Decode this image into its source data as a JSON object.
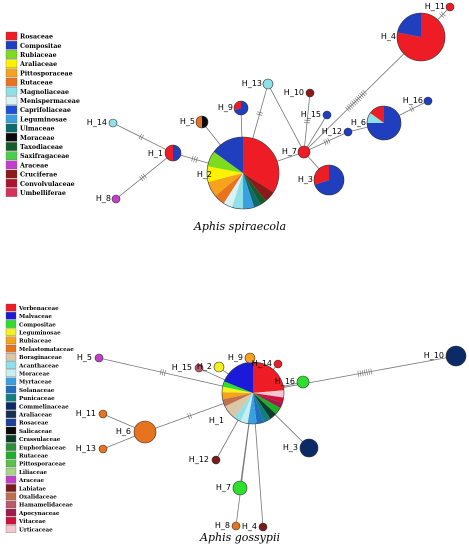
{
  "figures": [
    {
      "id": "spiraeacola",
      "caption": "Aphis spiraecola",
      "legend": [
        {
          "label": "Rosaceae",
          "color": "#ee1c24"
        },
        {
          "label": "Compositae",
          "color": "#1f3fbf"
        },
        {
          "label": "Rubiaceae",
          "color": "#7ddc1f"
        },
        {
          "label": "Araliaceae",
          "color": "#fff200"
        },
        {
          "label": "Pittosporaceae",
          "color": "#f7a21c"
        },
        {
          "label": "Rutaceae",
          "color": "#e8731e"
        },
        {
          "label": "Magnoliaceae",
          "color": "#8fe0e8"
        },
        {
          "label": "Menispermaceae",
          "color": "#d9f2f4"
        },
        {
          "label": "Caprifoliaceae",
          "color": "#1f4fd8"
        },
        {
          "label": "Leguminosae",
          "color": "#3aa0e0"
        },
        {
          "label": "Ulmaceae",
          "color": "#0f6b6b"
        },
        {
          "label": "Moraceae",
          "color": "#0a0a0a"
        },
        {
          "label": "Taxodiaceae",
          "color": "#155c28"
        },
        {
          "label": "Saxifragaceae",
          "color": "#4ccf4c"
        },
        {
          "label": "Araceae",
          "color": "#c23fc9"
        },
        {
          "label": "Cruciferae",
          "color": "#8c1a1a"
        },
        {
          "label": "Convolvulaceae",
          "color": "#b0132f"
        },
        {
          "label": "Umbelliferae",
          "color": "#d8305a"
        }
      ],
      "haplotypes": [
        {
          "name": "H_1",
          "slices": [
            {
              "v": 0.5,
              "c": "#1f3fbf"
            },
            {
              "v": 0.5,
              "c": "#ee1c24"
            }
          ]
        },
        {
          "name": "H_2",
          "slices": [
            {
              "v": 0.34,
              "c": "#ee1c24"
            },
            {
              "v": 0.05,
              "c": "#8c1a1a"
            },
            {
              "v": 0.03,
              "c": "#155c28"
            },
            {
              "v": 0.03,
              "c": "#0f6b6b"
            },
            {
              "v": 0.05,
              "c": "#3aa0e0"
            },
            {
              "v": 0.05,
              "c": "#8fe0e8"
            },
            {
              "v": 0.04,
              "c": "#d9f2f4"
            },
            {
              "v": 0.05,
              "c": "#e8731e"
            },
            {
              "v": 0.07,
              "c": "#f7a21c"
            },
            {
              "v": 0.07,
              "c": "#fff200"
            },
            {
              "v": 0.07,
              "c": "#7ddc1f"
            },
            {
              "v": 0.15,
              "c": "#1f3fbf"
            }
          ]
        },
        {
          "name": "H_3",
          "slices": [
            {
              "v": 0.7,
              "c": "#1f3fbf"
            },
            {
              "v": 0.3,
              "c": "#ee1c24"
            }
          ]
        },
        {
          "name": "H_4",
          "slices": [
            {
              "v": 0.78,
              "c": "#ee1c24"
            },
            {
              "v": 0.22,
              "c": "#1f3fbf"
            }
          ]
        },
        {
          "name": "H_5",
          "slices": [
            {
              "v": 0.5,
              "c": "#0a0a0a"
            },
            {
              "v": 0.5,
              "c": "#e8731e"
            }
          ]
        },
        {
          "name": "H_6",
          "slices": [
            {
              "v": 0.75,
              "c": "#1f3fbf"
            },
            {
              "v": 0.1,
              "c": "#8fe0e8"
            },
            {
              "v": 0.15,
              "c": "#ee1c24"
            }
          ]
        },
        {
          "name": "H_7",
          "slices": [
            {
              "v": 1,
              "c": "#ee1c24"
            }
          ]
        },
        {
          "name": "H_8",
          "slices": [
            {
              "v": 1,
              "c": "#c23fc9"
            }
          ]
        },
        {
          "name": "H_9",
          "slices": [
            {
              "v": 0.7,
              "c": "#1f3fbf"
            },
            {
              "v": 0.3,
              "c": "#ee1c24"
            }
          ]
        },
        {
          "name": "H_10",
          "slices": [
            {
              "v": 1,
              "c": "#8c1a1a"
            }
          ]
        },
        {
          "name": "H_11",
          "slices": [
            {
              "v": 1,
              "c": "#ee1c24"
            }
          ]
        },
        {
          "name": "H_12",
          "slices": [
            {
              "v": 1,
              "c": "#1f3fbf"
            }
          ]
        },
        {
          "name": "H_13",
          "slices": [
            {
              "v": 1,
              "c": "#8fe0e8"
            }
          ]
        },
        {
          "name": "H_14",
          "slices": [
            {
              "v": 1,
              "c": "#8fe0e8"
            }
          ]
        },
        {
          "name": "H_15",
          "slices": [
            {
              "v": 1,
              "c": "#1f3fbf"
            }
          ]
        },
        {
          "name": "H_16",
          "slices": [
            {
              "v": 1,
              "c": "#1f3fbf"
            }
          ]
        }
      ]
    },
    {
      "id": "gossypii",
      "caption": "Aphis gossypii",
      "legend": [
        {
          "label": "Verbenaceae",
          "color": "#ee1c24"
        },
        {
          "label": "Malvaceae",
          "color": "#1a1ad8"
        },
        {
          "label": "Compositae",
          "color": "#2ee02e"
        },
        {
          "label": "Leguminosae",
          "color": "#f2f21f"
        },
        {
          "label": "Rubiaceae",
          "color": "#f7a21c"
        },
        {
          "label": "Melastomataceae",
          "color": "#e8731e"
        },
        {
          "label": "Boraginaceae",
          "color": "#d9c7a8"
        },
        {
          "label": "Acanthaceae",
          "color": "#8fe0e8"
        },
        {
          "label": "Moraceae",
          "color": "#c9eef2"
        },
        {
          "label": "Myrtaceae",
          "color": "#3aa0e0"
        },
        {
          "label": "Solanaceae",
          "color": "#1f6fc0"
        },
        {
          "label": "Punicaceae",
          "color": "#0f7f7f"
        },
        {
          "label": "Commelinaceae",
          "color": "#0c2a66"
        },
        {
          "label": "Araliaceae",
          "color": "#17324f"
        },
        {
          "label": "Rosaceae",
          "color": "#1d3fa0"
        },
        {
          "label": "Salicaceae",
          "color": "#0a0a0a"
        },
        {
          "label": "Crassulaceae",
          "color": "#0d3d2a"
        },
        {
          "label": "Euphorbiaceae",
          "color": "#2f8f3a"
        },
        {
          "label": "Rutaceae",
          "color": "#1fb02a"
        },
        {
          "label": "Pittosporaceae",
          "color": "#59c24a"
        },
        {
          "label": "Liliaceae",
          "color": "#a8d48a"
        },
        {
          "label": "Araceae",
          "color": "#c23fc9"
        },
        {
          "label": "Labiatae",
          "color": "#7a1a1a"
        },
        {
          "label": "Oxalidaceae",
          "color": "#c0704a"
        },
        {
          "label": "Hamamelidaceae",
          "color": "#b85a6a"
        },
        {
          "label": "Apocynaceae",
          "color": "#a01a4a"
        },
        {
          "label": "Vitaceae",
          "color": "#d0103a"
        },
        {
          "label": "Urticaceae",
          "color": "#f4c6cf"
        }
      ],
      "haplotypes": [
        {
          "name": "H_1",
          "slices": [
            {
              "v": 0.25,
              "c": "#ee1c24"
            },
            {
              "v": 0.04,
              "c": "#f4c6cf"
            },
            {
              "v": 0.03,
              "c": "#d0103a"
            },
            {
              "v": 0.03,
              "c": "#a01a4a"
            },
            {
              "v": 0.04,
              "c": "#1fb02a"
            },
            {
              "v": 0.04,
              "c": "#0d3d2a"
            },
            {
              "v": 0.04,
              "c": "#0f7f7f"
            },
            {
              "v": 0.04,
              "c": "#1f6fc0"
            },
            {
              "v": 0.05,
              "c": "#3aa0e0"
            },
            {
              "v": 0.04,
              "c": "#c9eef2"
            },
            {
              "v": 0.04,
              "c": "#8fe0e8"
            },
            {
              "v": 0.08,
              "c": "#d9c7a8"
            },
            {
              "v": 0.04,
              "c": "#c0704a"
            },
            {
              "v": 0.04,
              "c": "#f7a21c"
            },
            {
              "v": 0.03,
              "c": "#f2f21f"
            },
            {
              "v": 0.03,
              "c": "#2ee02e"
            },
            {
              "v": 0.2,
              "c": "#1a1ad8"
            }
          ]
        },
        {
          "name": "H_2",
          "slices": [
            {
              "v": 1,
              "c": "#f2f21f"
            }
          ]
        },
        {
          "name": "H_3",
          "slices": [
            {
              "v": 1,
              "c": "#3aa0e0"
            }
          ]
        },
        {
          "name": "H_4",
          "slices": [
            {
              "v": 1,
              "c": "#7a1a1a"
            }
          ]
        },
        {
          "name": "H_5",
          "slices": [
            {
              "v": 1,
              "c": "#c23fc9"
            }
          ]
        },
        {
          "name": "H_6",
          "slices": [
            {
              "v": 1,
              "c": "#e8731e"
            }
          ]
        },
        {
          "name": "H_7",
          "slices": [
            {
              "v": 1,
              "c": "#2ee02e"
            }
          ]
        },
        {
          "name": "H_8",
          "slices": [
            {
              "v": 1,
              "c": "#e8731e"
            }
          ]
        },
        {
          "name": "H_9",
          "slices": [
            {
              "v": 1,
              "c": "#f7a21c"
            }
          ]
        },
        {
          "name": "H_10",
          "slices": [
            {
              "v": 1,
              "c": "#0c2a66"
            }
          ]
        },
        {
          "name": "H_11",
          "slices": [
            {
              "v": 1,
              "c": "#e8731e"
            }
          ]
        },
        {
          "name": "H_12",
          "slices": [
            {
              "v": 1,
              "c": "#7a1a1a"
            }
          ]
        },
        {
          "name": "H_13",
          "slices": [
            {
              "v": 1,
              "c": "#e8731e"
            }
          ]
        },
        {
          "name": "H_14",
          "slices": [
            {
              "v": 1,
              "c": "#ee1c24"
            }
          ]
        },
        {
          "name": "H_15",
          "slices": [
            {
              "v": 1,
              "c": "#b85a6a"
            }
          ]
        },
        {
          "name": "H_16",
          "slices": [
            {
              "v": 1,
              "c": "#2ee02e"
            }
          ]
        },
        {
          "name": "H_3b",
          "slices": [
            {
              "v": 1,
              "c": "#0c2a66"
            }
          ]
        }
      ]
    }
  ]
}
